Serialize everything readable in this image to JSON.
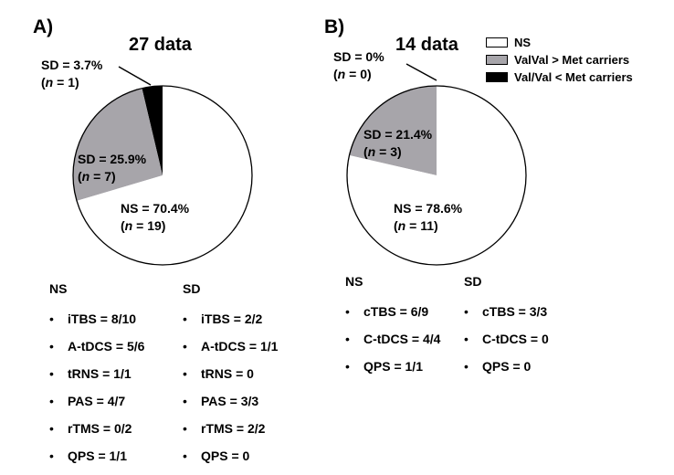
{
  "legend": [
    {
      "label": "NS",
      "color": "#ffffff"
    },
    {
      "label": "ValVal > Met carriers",
      "color": "#a7a5aa"
    },
    {
      "label": "Val/Val < Met carriers",
      "color": "#000000"
    }
  ],
  "chart_data": [
    {
      "type": "pie",
      "panel": "A)",
      "title": "27 data",
      "slices": [
        {
          "name": "NS",
          "percent": 70.4,
          "n": 19,
          "color": "#ffffff",
          "label_line1": "NS = 70.4%",
          "label_line2_pre": "(",
          "label_n": "n",
          "label_line2_post": " = 19)"
        },
        {
          "name": "SD",
          "percent": 25.9,
          "n": 7,
          "color": "#a7a5aa",
          "label_line1": "SD = 25.9%",
          "label_line2_pre": "(",
          "label_n": "n",
          "label_line2_post": " = 7)"
        },
        {
          "name": "SD",
          "percent": 3.7,
          "n": 1,
          "color": "#000000",
          "label_line1": "SD = 3.7%",
          "label_line2_pre": "(",
          "label_n": "n",
          "label_line2_post": " = 1)"
        }
      ],
      "lists": {
        "ns_header": "NS",
        "ns": [
          "iTBS = 8/10",
          "A-tDCS = 5/6",
          "tRNS = 1/1",
          "PAS = 4/7",
          "rTMS = 0/2",
          "QPS = 1/1"
        ],
        "sd_header": "SD",
        "sd": [
          "iTBS = 2/2",
          "A-tDCS = 1/1",
          "tRNS = 0",
          "PAS = 3/3",
          "rTMS = 2/2",
          "QPS = 0"
        ]
      }
    },
    {
      "type": "pie",
      "panel": "B)",
      "title": "14 data",
      "slices": [
        {
          "name": "NS",
          "percent": 78.6,
          "n": 11,
          "color": "#ffffff",
          "label_line1": "NS = 78.6%",
          "label_line2_pre": "(",
          "label_n": "n",
          "label_line2_post": " = 11)"
        },
        {
          "name": "SD",
          "percent": 21.4,
          "n": 3,
          "color": "#a7a5aa",
          "label_line1": "SD = 21.4%",
          "label_line2_pre": "(",
          "label_n": "n",
          "label_line2_post": " = 3)"
        },
        {
          "name": "SD",
          "percent": 0,
          "n": 0,
          "color": "#000000",
          "label_line1": "SD = 0%",
          "label_line2_pre": "(",
          "label_n": "n",
          "label_line2_post": " = 0)"
        }
      ],
      "lists": {
        "ns_header": "NS",
        "ns": [
          "cTBS = 6/9",
          "C-tDCS = 4/4",
          "QPS = 1/1"
        ],
        "sd_header": "SD",
        "sd": [
          "cTBS = 3/3",
          "C-tDCS = 0",
          "QPS = 0"
        ]
      }
    }
  ]
}
